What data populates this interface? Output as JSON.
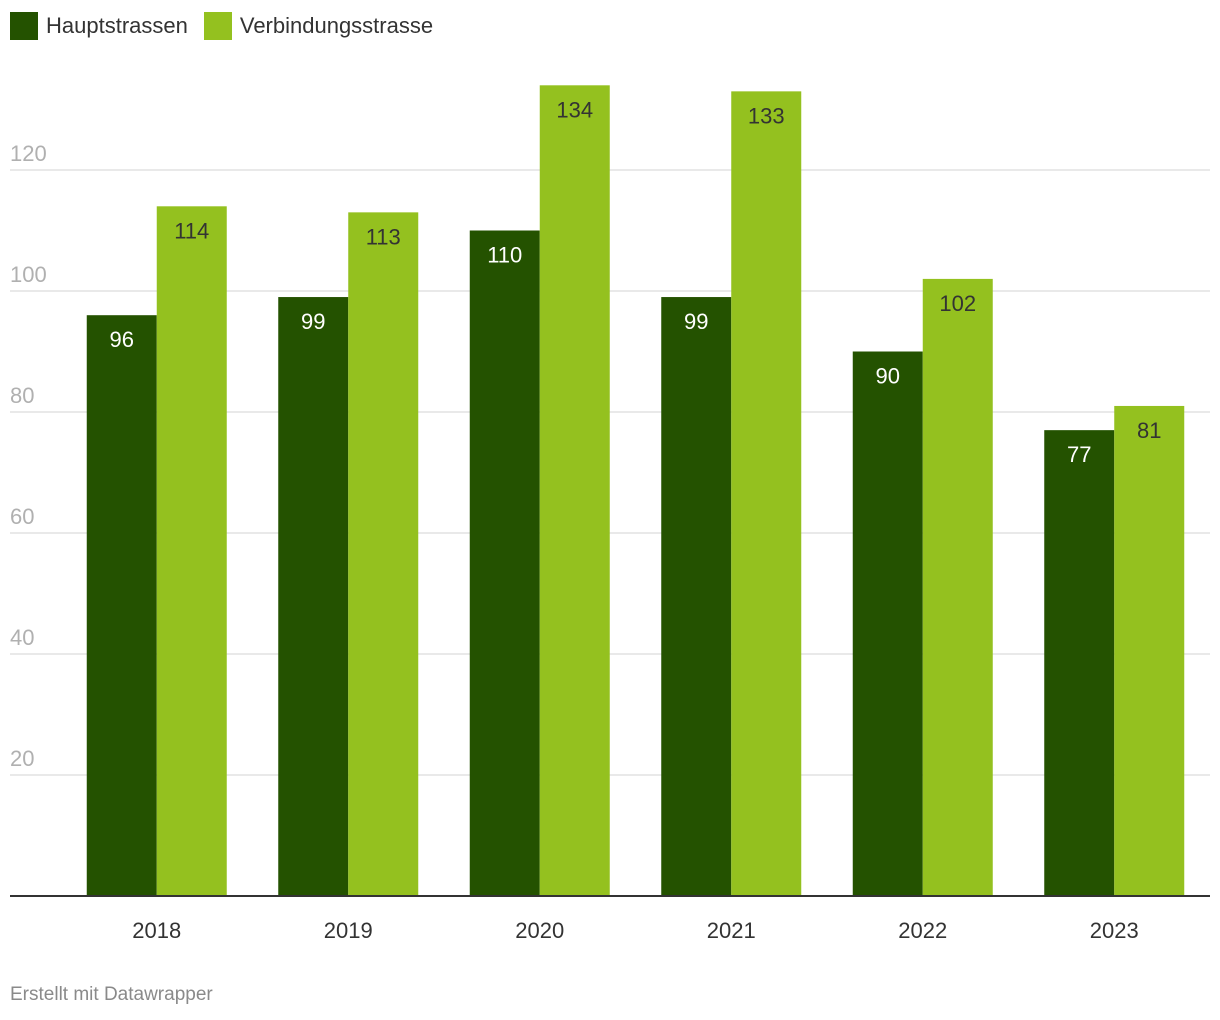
{
  "chart_data": {
    "type": "bar",
    "title": "",
    "xlabel": "",
    "ylabel": "",
    "categories": [
      "2018",
      "2019",
      "2020",
      "2021",
      "2022",
      "2023"
    ],
    "series": [
      {
        "name": "Hauptstrassen",
        "color": "#245200",
        "label_color": "#ffffff",
        "values": [
          96,
          99,
          110,
          99,
          90,
          77
        ]
      },
      {
        "name": "Verbindungsstrasse",
        "color": "#94c11f",
        "label_color": "#333333",
        "values": [
          114,
          113,
          134,
          133,
          102,
          81
        ]
      }
    ],
    "ylim": [
      0,
      140
    ],
    "yticks": [
      20,
      40,
      60,
      80,
      100,
      120
    ],
    "grid": true,
    "legend": "top-left"
  },
  "footer": {
    "credit": "Erstellt mit Datawrapper"
  }
}
